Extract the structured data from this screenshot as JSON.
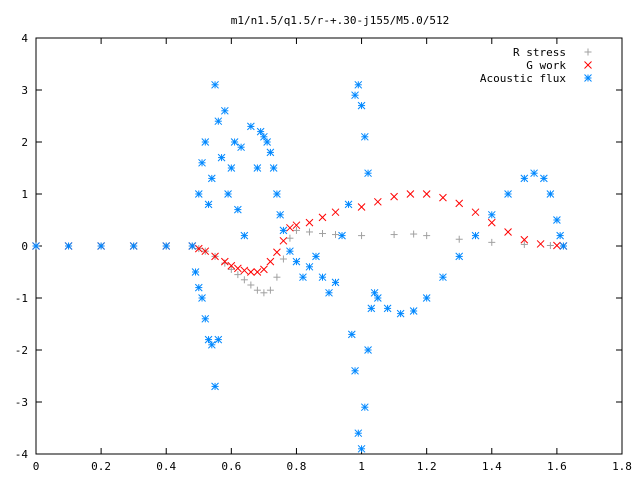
{
  "chart_data": {
    "type": "scatter",
    "title": "m1/n1.5/q1.5/r-+.30-j155/M5.0/512",
    "xlabel": "",
    "ylabel": "",
    "xlim": [
      0,
      1.8
    ],
    "ylim": [
      -4,
      4
    ],
    "x_ticks": [
      "0",
      "0.2",
      "0.4",
      "0.6",
      "0.8",
      "1",
      "1.2",
      "1.4",
      "1.6",
      "1.8"
    ],
    "y_ticks": [
      "-4",
      "-3",
      "-2",
      "-1",
      "0",
      "1",
      "2",
      "3",
      "4"
    ],
    "grid": false,
    "legend_position": "top-right",
    "series": [
      {
        "name": "R stress",
        "marker": "plus",
        "color": "#a0a0a0",
        "points": [
          [
            0,
            0
          ],
          [
            0.1,
            0
          ],
          [
            0.2,
            0
          ],
          [
            0.3,
            0
          ],
          [
            0.4,
            0
          ],
          [
            0.48,
            0
          ],
          [
            0.5,
            -0.05
          ],
          [
            0.52,
            -0.1
          ],
          [
            0.55,
            -0.2
          ],
          [
            0.58,
            -0.33
          ],
          [
            0.6,
            -0.45
          ],
          [
            0.62,
            -0.55
          ],
          [
            0.64,
            -0.65
          ],
          [
            0.66,
            -0.75
          ],
          [
            0.68,
            -0.85
          ],
          [
            0.7,
            -0.9
          ],
          [
            0.72,
            -0.85
          ],
          [
            0.74,
            -0.6
          ],
          [
            0.76,
            -0.25
          ],
          [
            0.78,
            0.15
          ],
          [
            0.8,
            0.3
          ],
          [
            0.84,
            0.27
          ],
          [
            0.88,
            0.24
          ],
          [
            0.92,
            0.22
          ],
          [
            1.0,
            0.2
          ],
          [
            1.1,
            0.22
          ],
          [
            1.16,
            0.23
          ],
          [
            1.2,
            0.2
          ],
          [
            1.3,
            0.13
          ],
          [
            1.4,
            0.07
          ],
          [
            1.5,
            0.03
          ],
          [
            1.58,
            0.01
          ],
          [
            1.62,
            0
          ]
        ]
      },
      {
        "name": "G work",
        "marker": "cross",
        "color": "#ff0000",
        "points": [
          [
            0,
            0
          ],
          [
            0.1,
            0
          ],
          [
            0.2,
            0
          ],
          [
            0.3,
            0
          ],
          [
            0.4,
            0
          ],
          [
            0.48,
            0
          ],
          [
            0.5,
            -0.05
          ],
          [
            0.52,
            -0.1
          ],
          [
            0.55,
            -0.2
          ],
          [
            0.58,
            -0.3
          ],
          [
            0.6,
            -0.38
          ],
          [
            0.62,
            -0.43
          ],
          [
            0.64,
            -0.47
          ],
          [
            0.66,
            -0.5
          ],
          [
            0.68,
            -0.5
          ],
          [
            0.7,
            -0.45
          ],
          [
            0.72,
            -0.3
          ],
          [
            0.74,
            -0.12
          ],
          [
            0.76,
            0.1
          ],
          [
            0.78,
            0.35
          ],
          [
            0.8,
            0.4
          ],
          [
            0.84,
            0.45
          ],
          [
            0.88,
            0.55
          ],
          [
            0.92,
            0.65
          ],
          [
            1.0,
            0.75
          ],
          [
            1.05,
            0.85
          ],
          [
            1.1,
            0.95
          ],
          [
            1.15,
            1.0
          ],
          [
            1.2,
            1.0
          ],
          [
            1.25,
            0.93
          ],
          [
            1.3,
            0.82
          ],
          [
            1.35,
            0.65
          ],
          [
            1.4,
            0.45
          ],
          [
            1.45,
            0.27
          ],
          [
            1.5,
            0.12
          ],
          [
            1.55,
            0.04
          ],
          [
            1.6,
            0.01
          ],
          [
            1.62,
            0
          ]
        ]
      },
      {
        "name": "Acoustic flux",
        "marker": "star",
        "color": "#0088ff",
        "points": [
          [
            0,
            0
          ],
          [
            0.1,
            0
          ],
          [
            0.2,
            0
          ],
          [
            0.3,
            0
          ],
          [
            0.4,
            0
          ],
          [
            0.48,
            0
          ],
          [
            0.49,
            -0.5
          ],
          [
            0.5,
            -0.8
          ],
          [
            0.51,
            -1.0
          ],
          [
            0.52,
            -1.4
          ],
          [
            0.53,
            -1.8
          ],
          [
            0.54,
            -1.9
          ],
          [
            0.55,
            -2.7
          ],
          [
            0.56,
            -1.8
          ],
          [
            0.5,
            1.0
          ],
          [
            0.51,
            1.6
          ],
          [
            0.52,
            2.0
          ],
          [
            0.53,
            0.8
          ],
          [
            0.54,
            1.3
          ],
          [
            0.55,
            3.1
          ],
          [
            0.56,
            2.4
          ],
          [
            0.57,
            1.7
          ],
          [
            0.58,
            2.6
          ],
          [
            0.59,
            1.0
          ],
          [
            0.6,
            1.5
          ],
          [
            0.61,
            2.0
          ],
          [
            0.62,
            0.7
          ],
          [
            0.63,
            1.9
          ],
          [
            0.64,
            0.2
          ],
          [
            0.66,
            2.3
          ],
          [
            0.68,
            1.5
          ],
          [
            0.69,
            2.2
          ],
          [
            0.7,
            2.1
          ],
          [
            0.71,
            2.0
          ],
          [
            0.72,
            1.8
          ],
          [
            0.73,
            1.5
          ],
          [
            0.74,
            1.0
          ],
          [
            0.75,
            0.6
          ],
          [
            0.76,
            0.3
          ],
          [
            0.78,
            -0.1
          ],
          [
            0.8,
            -0.3
          ],
          [
            0.82,
            -0.6
          ],
          [
            0.84,
            -0.4
          ],
          [
            0.86,
            -0.2
          ],
          [
            0.88,
            -0.6
          ],
          [
            0.9,
            -0.9
          ],
          [
            0.92,
            -0.7
          ],
          [
            0.94,
            0.2
          ],
          [
            0.96,
            0.8
          ],
          [
            0.97,
            -1.7
          ],
          [
            0.98,
            -2.4
          ],
          [
            0.99,
            -3.6
          ],
          [
            1.0,
            -3.9
          ],
          [
            1.01,
            -3.1
          ],
          [
            1.02,
            -2.0
          ],
          [
            1.03,
            -1.2
          ],
          [
            1.04,
            -0.9
          ],
          [
            0.98,
            2.9
          ],
          [
            0.99,
            3.1
          ],
          [
            1.0,
            2.7
          ],
          [
            1.01,
            2.1
          ],
          [
            1.02,
            1.4
          ],
          [
            1.05,
            -1.0
          ],
          [
            1.08,
            -1.2
          ],
          [
            1.12,
            -1.3
          ],
          [
            1.16,
            -1.25
          ],
          [
            1.2,
            -1.0
          ],
          [
            1.25,
            -0.6
          ],
          [
            1.3,
            -0.2
          ],
          [
            1.35,
            0.2
          ],
          [
            1.4,
            0.6
          ],
          [
            1.45,
            1.0
          ],
          [
            1.5,
            1.3
          ],
          [
            1.53,
            1.4
          ],
          [
            1.56,
            1.3
          ],
          [
            1.58,
            1.0
          ],
          [
            1.6,
            0.5
          ],
          [
            1.61,
            0.2
          ],
          [
            1.62,
            0
          ]
        ]
      }
    ]
  }
}
